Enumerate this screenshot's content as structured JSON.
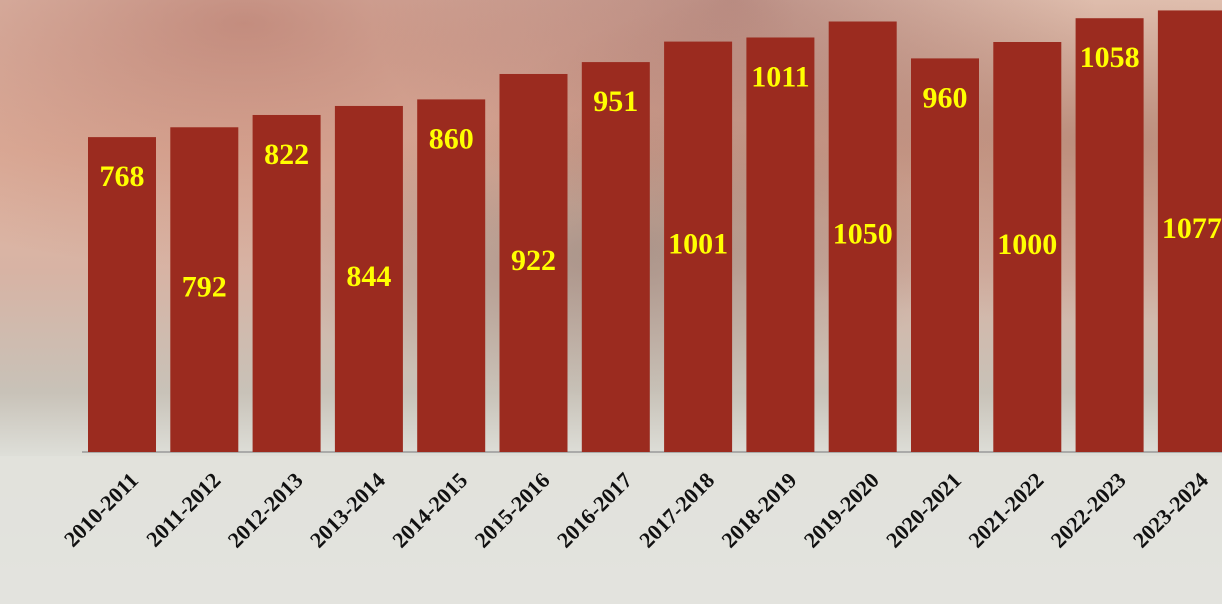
{
  "chart_data": {
    "type": "bar",
    "categories": [
      "2010-2011",
      "2011-2012",
      "2012-2013",
      "2013-2014",
      "2014-2015",
      "2015-2016",
      "2016-2017",
      "2017-2018",
      "2018-2019",
      "2019-2020",
      "2020-2021",
      "2021-2022",
      "2022-2023",
      "2023-2024"
    ],
    "values": [
      768,
      792,
      822,
      844,
      860,
      922,
      951,
      1001,
      1011,
      1050,
      960,
      1000,
      1058,
      1077
    ],
    "color": "#9b2b1f",
    "label_color": "#ffff00",
    "ylim": [
      0,
      1100
    ]
  }
}
